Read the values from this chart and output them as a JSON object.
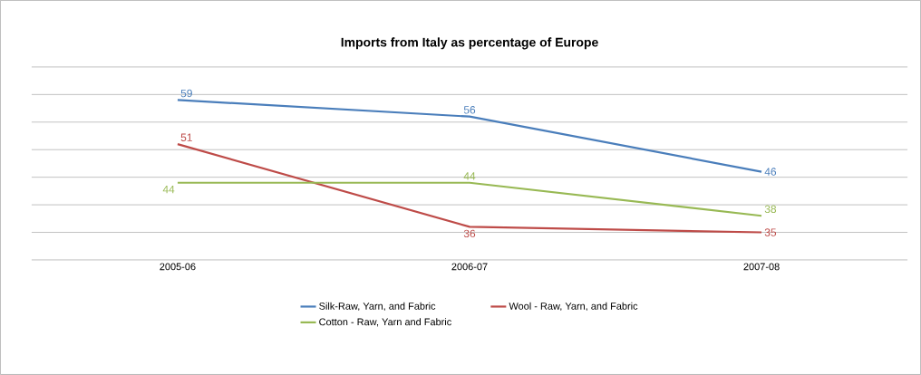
{
  "chart_data": {
    "type": "line",
    "title": "Imports from Italy as percentage of Europe",
    "categories": [
      "2005-06",
      "2006-07",
      "2007-08"
    ],
    "series": [
      {
        "name": "Silk-Raw, Yarn, and Fabric",
        "color": "#4a7ebb",
        "values": [
          59,
          56,
          46
        ]
      },
      {
        "name": "Wool - Raw, Yarn, and Fabric",
        "color": "#be4b48",
        "values": [
          51,
          36,
          35
        ]
      },
      {
        "name": "Cotton - Raw, Yarn and Fabric",
        "color": "#98b954",
        "values": [
          44,
          44,
          38
        ]
      }
    ],
    "ylim": [
      30,
      65
    ],
    "yticks": [
      {
        "value": 30,
        "label": null
      },
      {
        "value": 35,
        "label": null
      },
      {
        "value": 40,
        "label": null
      },
      {
        "value": 45,
        "label": null
      },
      {
        "value": 50,
        "label": null
      },
      {
        "value": 55,
        "label": null
      },
      {
        "value": 60,
        "label": null
      },
      {
        "value": 65,
        "label": null
      }
    ],
    "tick_labels": "x",
    "grid": "y",
    "legend": "bottom",
    "data_labels": true,
    "marker": "none",
    "line_style": "solid"
  }
}
